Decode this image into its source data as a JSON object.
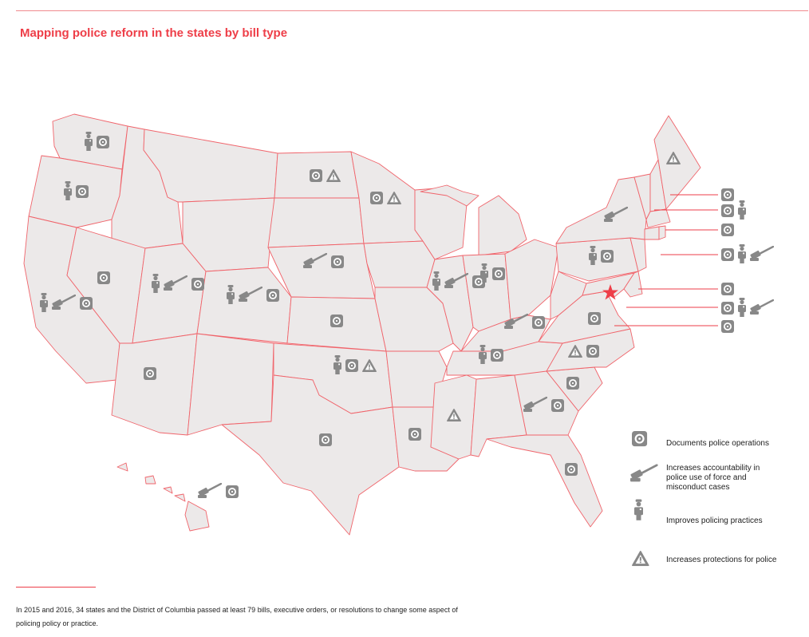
{
  "title": "Mapping police reform in the states by bill type",
  "colors": {
    "accent": "#ee3e48",
    "state_fill": "#ece9e9",
    "state_stroke": "#f0646b",
    "icon": "#888888"
  },
  "legend": [
    {
      "icon": "camera-icon",
      "label": "Documents police operations"
    },
    {
      "icon": "gavel-icon",
      "label": "Increases accountability in police use of force and misconduct cases"
    },
    {
      "icon": "officer-icon",
      "label": "Improves policing practices"
    },
    {
      "icon": "warning-icon",
      "label": "Increases protections for police"
    }
  ],
  "footnote": "In 2015 and 2016, 34 states and the District of Columbia passed at least 79 bills, executive orders, or resolutions to change some aspect of policing policy or practice.",
  "states": [
    {
      "id": "WA",
      "bills": [
        "officer",
        "camera"
      ]
    },
    {
      "id": "OR",
      "bills": [
        "officer",
        "camera"
      ]
    },
    {
      "id": "CA",
      "bills": [
        "officer",
        "gavel",
        "camera"
      ]
    },
    {
      "id": "NV",
      "bills": [
        "camera"
      ]
    },
    {
      "id": "UT",
      "bills": [
        "officer",
        "gavel",
        "camera"
      ]
    },
    {
      "id": "AZ",
      "bills": [
        "camera"
      ]
    },
    {
      "id": "CO",
      "bills": [
        "officer",
        "gavel",
        "camera"
      ]
    },
    {
      "id": "ND",
      "bills": [
        "camera",
        "warning"
      ]
    },
    {
      "id": "NE",
      "bills": [
        "gavel",
        "camera"
      ]
    },
    {
      "id": "KS",
      "bills": [
        "camera"
      ]
    },
    {
      "id": "OK",
      "bills": [
        "officer",
        "camera",
        "warning"
      ]
    },
    {
      "id": "TX",
      "bills": [
        "camera"
      ]
    },
    {
      "id": "MN",
      "bills": [
        "camera",
        "warning"
      ]
    },
    {
      "id": "LA",
      "bills": [
        "camera"
      ]
    },
    {
      "id": "IL",
      "bills": [
        "officer",
        "gavel",
        "camera"
      ]
    },
    {
      "id": "IN",
      "bills": [
        "officer",
        "camera"
      ]
    },
    {
      "id": "MS",
      "bills": [
        "warning"
      ]
    },
    {
      "id": "TN",
      "bills": [
        "officer",
        "camera"
      ]
    },
    {
      "id": "OH",
      "bills": [
        "gavel",
        "camera"
      ]
    },
    {
      "id": "GA",
      "bills": [
        "gavel",
        "camera"
      ]
    },
    {
      "id": "FL",
      "bills": [
        "camera"
      ]
    },
    {
      "id": "SC",
      "bills": [
        "camera"
      ]
    },
    {
      "id": "NC",
      "bills": [
        "warning",
        "camera"
      ]
    },
    {
      "id": "VA",
      "bills": [
        "camera"
      ]
    },
    {
      "id": "PA",
      "bills": [
        "officer",
        "camera"
      ]
    },
    {
      "id": "NY",
      "bills": [
        "gavel"
      ]
    },
    {
      "id": "ME",
      "bills": [
        "warning"
      ]
    },
    {
      "id": "HI",
      "bills": [
        "gavel",
        "camera"
      ]
    },
    {
      "id": "NH",
      "bills": [
        "camera"
      ]
    },
    {
      "id": "MA",
      "bills": [
        "camera",
        "officer"
      ]
    },
    {
      "id": "RI",
      "bills": [
        "camera"
      ]
    },
    {
      "id": "CT",
      "bills": [
        "camera",
        "officer",
        "gavel"
      ]
    },
    {
      "id": "DE",
      "bills": [
        "camera"
      ]
    },
    {
      "id": "MD",
      "bills": [
        "camera",
        "officer",
        "gavel"
      ]
    },
    {
      "id": "DC",
      "bills": [
        "camera"
      ]
    }
  ]
}
